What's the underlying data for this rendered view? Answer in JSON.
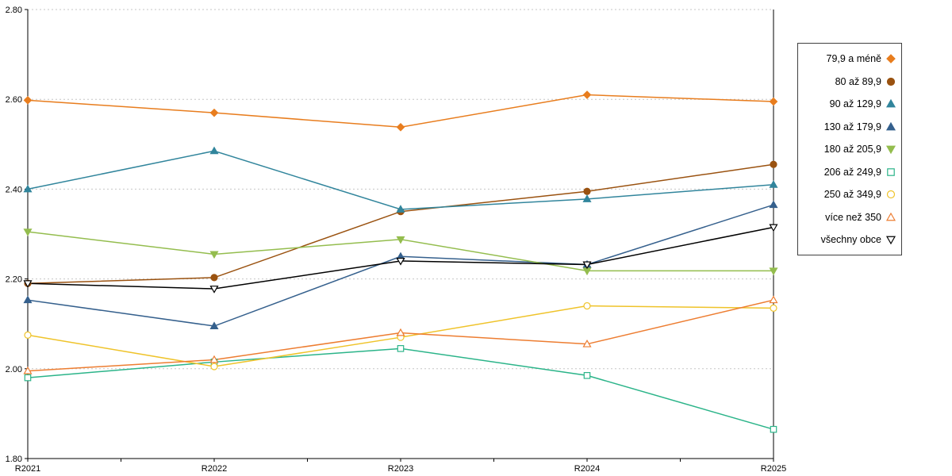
{
  "chart_data": {
    "type": "line",
    "title": "",
    "xlabel": "",
    "ylabel": "",
    "grid": true,
    "legend_position": "right",
    "categories": [
      "R2021",
      "R2022",
      "R2023",
      "R2024",
      "R2025"
    ],
    "y_axis": {
      "min": 1.8,
      "max": 2.8,
      "step": 0.2,
      "tick_labels": [
        "1.80",
        "2.00",
        "2.20",
        "2.40",
        "2.60",
        "2.80"
      ]
    },
    "series": [
      {
        "name": "79,9 a méně",
        "color": "#E87D1E",
        "marker": "diamond-filled",
        "values": [
          2.598,
          2.57,
          2.538,
          2.61,
          2.595
        ]
      },
      {
        "name": "80 až 89,9",
        "color": "#9A5210",
        "marker": "circle-filled",
        "values": [
          2.19,
          2.203,
          2.35,
          2.395,
          2.455
        ]
      },
      {
        "name": "90 až 129,9",
        "color": "#31859C",
        "marker": "triangle-up-filled",
        "values": [
          2.4,
          2.485,
          2.355,
          2.378,
          2.41
        ]
      },
      {
        "name": "130 až 179,9",
        "color": "#35608D",
        "marker": "triangle-up-filled2",
        "values": [
          2.153,
          2.095,
          2.25,
          2.232,
          2.365
        ]
      },
      {
        "name": "180 až 205,9",
        "color": "#94BD4E",
        "marker": "triangle-down-filled",
        "values": [
          2.305,
          2.255,
          2.288,
          2.218,
          2.218
        ]
      },
      {
        "name": "206 až 249,9",
        "color": "#2BB489",
        "marker": "square-open",
        "values": [
          1.98,
          2.015,
          2.045,
          1.985,
          1.865
        ]
      },
      {
        "name": "250 až 349,9",
        "color": "#EFC32A",
        "marker": "circle-open",
        "values": [
          2.075,
          2.005,
          2.07,
          2.14,
          2.135
        ]
      },
      {
        "name": "více než 350",
        "color": "#ED7D31",
        "marker": "triangle-up-open",
        "values": [
          1.995,
          2.02,
          2.08,
          2.055,
          2.153
        ]
      },
      {
        "name": "všechny obce",
        "color": "#000000",
        "marker": "triangle-down-open",
        "values": [
          2.19,
          2.178,
          2.24,
          2.232,
          2.315
        ]
      }
    ]
  }
}
